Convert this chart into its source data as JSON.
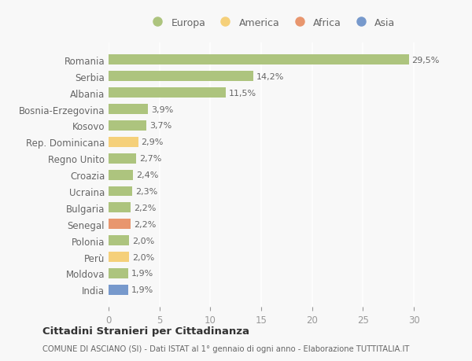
{
  "countries": [
    "Romania",
    "Serbia",
    "Albania",
    "Bosnia-Erzegovina",
    "Kosovo",
    "Rep. Dominicana",
    "Regno Unito",
    "Croazia",
    "Ucraina",
    "Bulgaria",
    "Senegal",
    "Polonia",
    "Perù",
    "Moldova",
    "India"
  ],
  "values": [
    29.5,
    14.2,
    11.5,
    3.9,
    3.7,
    2.9,
    2.7,
    2.4,
    2.3,
    2.2,
    2.2,
    2.0,
    2.0,
    1.9,
    1.9
  ],
  "labels": [
    "29,5%",
    "14,2%",
    "11,5%",
    "3,9%",
    "3,7%",
    "2,9%",
    "2,7%",
    "2,4%",
    "2,3%",
    "2,2%",
    "2,2%",
    "2,0%",
    "2,0%",
    "1,9%",
    "1,9%"
  ],
  "continents": [
    "Europa",
    "Europa",
    "Europa",
    "Europa",
    "Europa",
    "America",
    "Europa",
    "Europa",
    "Europa",
    "Europa",
    "Africa",
    "Europa",
    "America",
    "Europa",
    "Asia"
  ],
  "bar_colors": [
    "#adc47e",
    "#adc47e",
    "#adc47e",
    "#adc47e",
    "#adc47e",
    "#f5d07a",
    "#adc47e",
    "#adc47e",
    "#adc47e",
    "#adc47e",
    "#e8966e",
    "#adc47e",
    "#f5d07a",
    "#adc47e",
    "#7799cc"
  ],
  "xlim": [
    0,
    32
  ],
  "xticks": [
    0,
    5,
    10,
    15,
    20,
    25,
    30
  ],
  "title": "Cittadini Stranieri per Cittadinanza",
  "subtitle": "COMUNE DI ASCIANO (SI) - Dati ISTAT al 1° gennaio di ogni anno - Elaborazione TUTTITALIA.IT",
  "background_color": "#f8f8f8",
  "grid_color": "#ffffff",
  "legend_labels": [
    "Europa",
    "America",
    "Africa",
    "Asia"
  ],
  "legend_colors": [
    "#adc47e",
    "#f5d07a",
    "#e8966e",
    "#7799cc"
  ]
}
